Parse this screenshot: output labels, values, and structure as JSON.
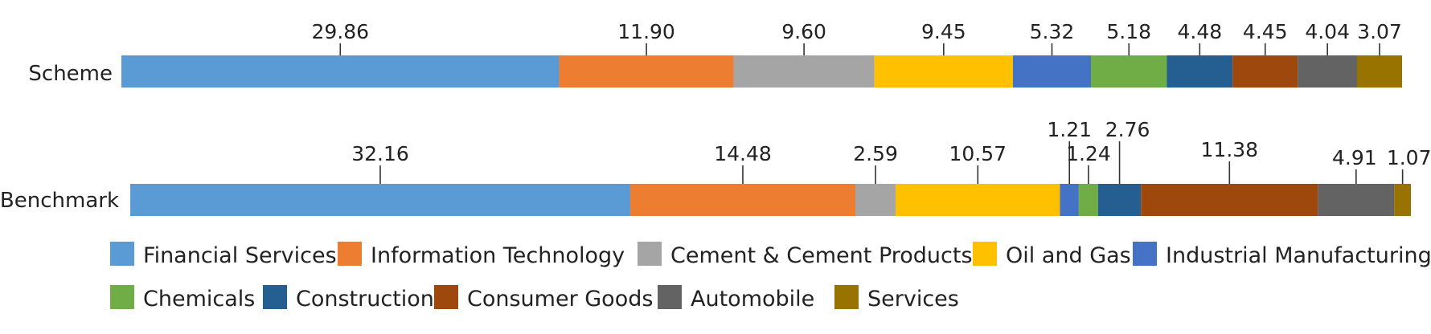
{
  "chart_data": {
    "type": "bar",
    "orientation": "horizontal-stacked",
    "categories": [
      "Scheme",
      "Benchmark"
    ],
    "series": [
      {
        "name": "Financial Services",
        "color": "#5b9bd5",
        "values": [
          29.86,
          32.16
        ],
        "labels": [
          "29.86",
          "32.16"
        ]
      },
      {
        "name": "Information Technology",
        "color": "#ed7d31",
        "values": [
          11.9,
          14.48
        ],
        "labels": [
          "11.90",
          "14.48"
        ]
      },
      {
        "name": "Cement & Cement Products",
        "color": "#a5a5a5",
        "values": [
          9.6,
          2.59
        ],
        "labels": [
          "9.60",
          "2.59"
        ]
      },
      {
        "name": "Oil and Gas",
        "color": "#ffc000",
        "values": [
          9.45,
          10.57
        ],
        "labels": [
          "9.45",
          "10.57"
        ]
      },
      {
        "name": "Industrial Manufacturing",
        "color": "#4472c4",
        "values": [
          5.32,
          1.21
        ],
        "labels": [
          "5.32",
          "1.21"
        ]
      },
      {
        "name": "Chemicals",
        "color": "#70ad47",
        "values": [
          5.18,
          1.24
        ],
        "labels": [
          "5.18",
          "1.24"
        ]
      },
      {
        "name": "Construction",
        "color": "#255e91",
        "values": [
          4.48,
          2.76
        ],
        "labels": [
          "4.48",
          "2.76"
        ]
      },
      {
        "name": "Consumer Goods",
        "color": "#9e480e",
        "values": [
          4.45,
          11.38
        ],
        "labels": [
          "4.45",
          "11.38"
        ]
      },
      {
        "name": "Automobile",
        "color": "#636363",
        "values": [
          4.04,
          4.91
        ],
        "labels": [
          "4.04",
          "4.91"
        ]
      },
      {
        "name": "Services",
        "color": "#997300",
        "values": [
          3.07,
          1.07
        ],
        "labels": [
          "3.07",
          "1.07"
        ]
      }
    ],
    "legend_position": "bottom",
    "grid": false
  }
}
